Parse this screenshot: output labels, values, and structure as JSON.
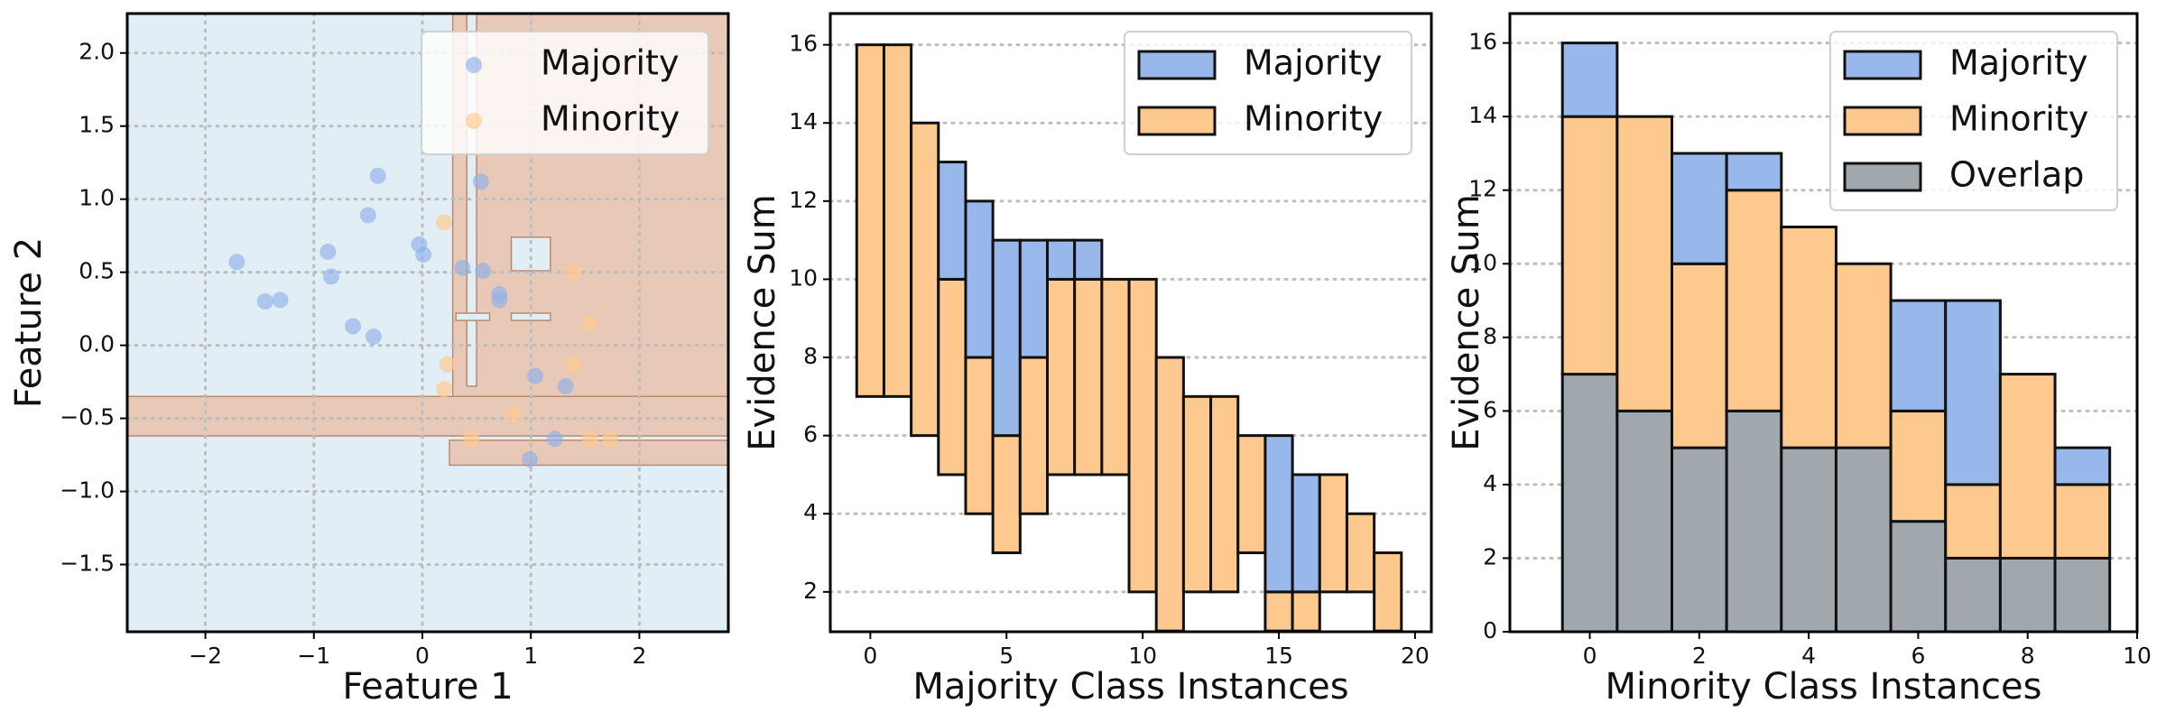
{
  "chart_data": [
    {
      "type": "scatter",
      "xlabel": "Feature 1",
      "ylabel": "Feature 2",
      "xlim": [
        -2.72,
        2.82
      ],
      "ylim": [
        -1.96,
        2.27
      ],
      "xticks": [
        {
          "value": -2,
          "label": "−2"
        },
        {
          "value": -1,
          "label": "−1"
        },
        0,
        1,
        2
      ],
      "yticks": [
        {
          "value": -1.5,
          "label": "−1.5"
        },
        {
          "value": -1,
          "label": "−1.0"
        },
        {
          "value": -0.5,
          "label": "−0.5"
        },
        {
          "value": 0,
          "label": "0.0"
        },
        0.5,
        {
          "value": 1,
          "label": "1.0"
        },
        1.5,
        {
          "value": 2,
          "label": "2.0"
        }
      ],
      "grid": "both",
      "legend": "upper right",
      "series": [
        {
          "name": "Majority",
          "color": "#8fb0ea",
          "x": [
            -1.71,
            -1.45,
            -1.31,
            -0.87,
            -0.84,
            -0.64,
            -0.5,
            -0.41,
            -0.45,
            -0.03,
            0.01,
            0.37,
            0.54,
            0.56,
            0.71,
            0.71,
            1.04,
            1.32,
            1.22,
            0.99
          ],
          "y": [
            0.57,
            0.3,
            0.31,
            0.64,
            0.47,
            0.13,
            0.89,
            1.16,
            0.06,
            0.69,
            0.62,
            0.53,
            1.12,
            0.51,
            0.35,
            0.31,
            -0.21,
            -0.28,
            -0.64,
            -0.78
          ]
        },
        {
          "name": "Minority",
          "color": "#ffc98c",
          "x": [
            0.2,
            0.23,
            1.39,
            1.54,
            1.39,
            0.84,
            0.45,
            1.55,
            1.73,
            0.2
          ],
          "y": [
            0.84,
            -0.13,
            0.5,
            0.15,
            -0.13,
            -0.47,
            -0.64,
            -0.64,
            -0.64,
            -0.3
          ]
        }
      ]
    },
    {
      "type": "bar",
      "stacked": true,
      "xlabel": "Majority Class Instances",
      "ylabel": "Evidence Sum",
      "xlim": [
        -1.47,
        20.6
      ],
      "ylim": [
        0.98,
        16.8
      ],
      "xticks": [
        0,
        5,
        10,
        15,
        20
      ],
      "yticks": [
        2,
        4,
        6,
        8,
        10,
        12,
        14,
        16
      ],
      "grid": "y",
      "legend": "upper right",
      "x": [
        0,
        1,
        2,
        3,
        4,
        5,
        6,
        7,
        8,
        9,
        10,
        11,
        12,
        13,
        14,
        15,
        16,
        17,
        18,
        19
      ],
      "bottom": [
        7,
        7,
        6,
        5,
        4,
        3,
        4,
        5,
        5,
        5,
        2,
        1,
        2,
        2,
        3,
        1,
        1,
        2,
        2,
        1
      ],
      "series": [
        {
          "name": "Majority",
          "color": "#98b8ec",
          "values": [
            0,
            0,
            0,
            3,
            4,
            5,
            3,
            1,
            1,
            0,
            0,
            0,
            0,
            0,
            0,
            4,
            3,
            0,
            0,
            0
          ]
        },
        {
          "name": "Minority",
          "color": "#fec98f",
          "values": [
            9,
            9,
            8,
            5,
            4,
            3,
            4,
            5,
            5,
            5,
            8,
            7,
            5,
            5,
            3,
            1,
            1,
            3,
            2,
            2
          ]
        }
      ]
    },
    {
      "type": "bar",
      "stacked": true,
      "xlabel": "Minority Class Instances",
      "ylabel": "Evidence Sum",
      "xlim": [
        -1.46,
        10
      ],
      "ylim": [
        0,
        16.8
      ],
      "xticks": [
        0,
        2,
        4,
        6,
        8,
        10
      ],
      "yticks": [
        0,
        2,
        4,
        6,
        8,
        10,
        12,
        14,
        16
      ],
      "grid": "y",
      "legend": "upper right",
      "x": [
        0,
        1,
        2,
        3,
        4,
        5,
        6,
        7,
        8,
        9
      ],
      "series": [
        {
          "name": "Majority",
          "color": "#98b8ec",
          "values": [
            2,
            0,
            3,
            1,
            0,
            0,
            3,
            5,
            0,
            1
          ]
        },
        {
          "name": "Minority",
          "color": "#fec98f",
          "values": [
            7,
            8,
            5,
            6,
            6,
            5,
            3,
            2,
            5,
            2
          ]
        },
        {
          "name": "Overlap",
          "color": "#a0a7ad",
          "values": [
            7,
            6,
            5,
            6,
            5,
            5,
            3,
            2,
            2,
            2
          ]
        }
      ]
    }
  ]
}
